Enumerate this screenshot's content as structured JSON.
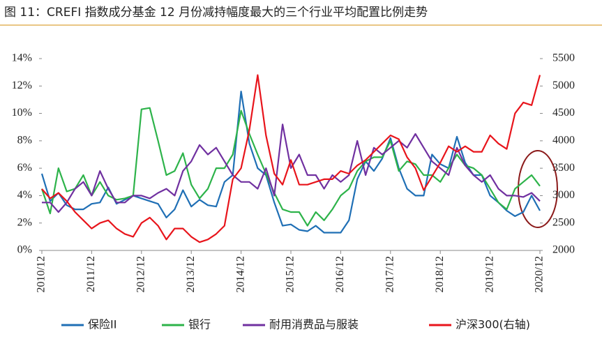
{
  "chart_data": {
    "type": "line",
    "title": "图 11：CREFI 指数成分基金 12 月份减持幅度最大的三个行业平均配置比例走势",
    "categories": [
      "2010/12",
      null,
      null,
      null,
      null,
      null,
      "2011/12",
      null,
      null,
      null,
      null,
      null,
      "2012/12",
      null,
      null,
      null,
      null,
      null,
      "2013/12",
      null,
      null,
      null,
      null,
      null,
      "2014/12",
      null,
      null,
      null,
      null,
      null,
      "2015/12",
      null,
      null,
      null,
      null,
      null,
      "2016/12",
      null,
      null,
      null,
      null,
      null,
      "2017/12",
      null,
      null,
      null,
      null,
      null,
      "2018/12",
      null,
      null,
      null,
      null,
      null,
      "2019/12",
      null,
      null,
      null,
      null,
      null,
      "2020/12"
    ],
    "series": [
      {
        "name": "保险II",
        "color": "#1f6fb5",
        "values": [
          5.6,
          3.6,
          4.2,
          3.3,
          3.0,
          3.0,
          3.4,
          3.5,
          4.6,
          3.4,
          3.7,
          4.0,
          3.8,
          3.6,
          3.4,
          2.4,
          3.0,
          4.4,
          3.2,
          3.7,
          3.3,
          3.2,
          5.0,
          5.5,
          11.6,
          7.8,
          6.0,
          5.5,
          3.5,
          1.8,
          1.9,
          1.5,
          1.4,
          1.8,
          1.3,
          1.3,
          1.3,
          2.2,
          5.2,
          6.5,
          5.8,
          6.7,
          8.2,
          6.0,
          4.5,
          4.0,
          4.0,
          7.0,
          6.3,
          6.0,
          8.3,
          6.4,
          5.5,
          5.5,
          4.0,
          3.5,
          2.9,
          2.5,
          2.8,
          4.0,
          2.9
        ]
      },
      {
        "name": "银行",
        "color": "#2db34a",
        "values": [
          4.5,
          2.7,
          6.0,
          4.3,
          4.5,
          5.5,
          4.0,
          5.0,
          4.0,
          3.7,
          3.8,
          4.0,
          10.3,
          10.4,
          8.0,
          5.5,
          5.8,
          7.1,
          4.8,
          3.8,
          4.5,
          6.0,
          6.0,
          7.0,
          10.2,
          8.5,
          7.0,
          5.6,
          4.2,
          3.0,
          2.8,
          2.8,
          1.8,
          2.8,
          2.2,
          3.0,
          4.0,
          4.5,
          5.8,
          6.5,
          6.8,
          6.8,
          8.0,
          5.8,
          6.5,
          6.3,
          5.5,
          5.5,
          5.0,
          6.0,
          7.0,
          6.2,
          6.0,
          5.5,
          4.5,
          3.5,
          3.0,
          4.5,
          5.0,
          5.5,
          4.7
        ]
      },
      {
        "name": "耐用消费品与服装",
        "color": "#7030a0",
        "values": [
          3.5,
          3.5,
          2.8,
          3.5,
          4.5,
          5.0,
          4.0,
          5.8,
          4.5,
          3.5,
          3.5,
          4.0,
          4.0,
          3.8,
          4.2,
          4.5,
          4.0,
          5.8,
          6.5,
          7.7,
          7.0,
          7.5,
          6.5,
          5.5,
          5.0,
          5.0,
          4.5,
          6.0,
          4.0,
          9.2,
          6.0,
          7.0,
          5.5,
          5.5,
          4.5,
          5.5,
          5.0,
          5.5,
          8.0,
          5.5,
          7.5,
          7.0,
          7.5,
          8.0,
          7.5,
          8.5,
          7.5,
          6.5,
          6.0,
          5.5,
          7.5,
          6.2,
          5.5,
          5.0,
          5.5,
          4.5,
          4.0,
          4.0,
          3.9,
          4.2,
          3.6
        ]
      },
      {
        "name": "沪深300(右轴)",
        "color": "#e8141b",
        "axis": "y2",
        "values": [
          3120,
          2950,
          3050,
          2900,
          2700,
          2550,
          2400,
          2500,
          2550,
          2400,
          2300,
          2250,
          2500,
          2600,
          2450,
          2200,
          2400,
          2400,
          2250,
          2150,
          2200,
          2300,
          2450,
          3300,
          3500,
          4200,
          5200,
          4100,
          3400,
          3200,
          3650,
          3200,
          3200,
          3250,
          3300,
          3300,
          3450,
          3400,
          3550,
          3650,
          3800,
          3950,
          4100,
          4030,
          3700,
          3500,
          3100,
          3350,
          3600,
          3900,
          3800,
          3900,
          3800,
          3800,
          4100,
          3950,
          3850,
          4500,
          4700,
          4650,
          5200
        ]
      }
    ],
    "ylim": [
      0,
      14
    ],
    "yticks": [
      {
        "value": 0,
        "label": "0%"
      },
      {
        "value": 2,
        "label": "2%"
      },
      {
        "value": 4,
        "label": "4%"
      },
      {
        "value": 6,
        "label": "6%"
      },
      {
        "value": 8,
        "label": "8%"
      },
      {
        "value": 10,
        "label": "10%"
      },
      {
        "value": 12,
        "label": "12%"
      },
      {
        "value": 14,
        "label": "14%"
      }
    ],
    "y2lim": [
      2000,
      5500
    ],
    "y2ticks": [
      2000,
      2500,
      3000,
      3500,
      4000,
      4500,
      5000,
      5500
    ],
    "grid": false,
    "legend": "bottom"
  }
}
